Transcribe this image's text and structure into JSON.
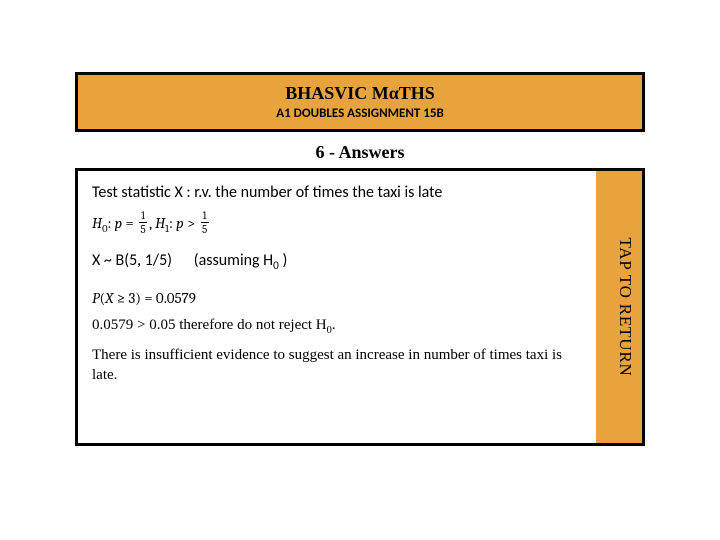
{
  "colors": {
    "accent": "#e8a33d",
    "border": "#000000",
    "background": "#ffffff",
    "text": "#000000"
  },
  "fonts": {
    "serif": "Times New Roman",
    "sans": "Calibri",
    "math": "Cambria"
  },
  "header": {
    "title": "BHASVIC MαTHS",
    "subtitle": "A1 DOUBLES ASSIGNMENT 15B"
  },
  "answers_label": "6 - Answers",
  "side_button_text": "TAP TO RETURN",
  "body": {
    "test_statistic": "Test statistic X : r.v. the number of times the taxi is late",
    "hypotheses": {
      "H0_label": "H",
      "H0_sub": "0",
      "H1_label": "H",
      "H1_sub": "1",
      "p_symbol": "p",
      "frac_num": "1",
      "frac_den": "5",
      "eq": "=",
      "gt": ">"
    },
    "distribution": {
      "prefix": "X ~ B(5, 1/5)",
      "assume": "(assuming H",
      "assume_sub": "0",
      "assume_tail": " )"
    },
    "probability": "P(X ≥ 3) = 0.0579",
    "compare": "0.0579 > 0.05 therefore do not reject H",
    "compare_sub": "0",
    "compare_tail": ".",
    "conclusion": "There is insufficient evidence  to suggest an increase in number of times taxi is late."
  }
}
